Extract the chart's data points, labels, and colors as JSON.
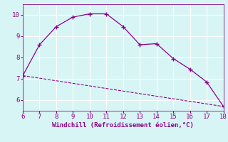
{
  "xlabel": "Windchill (Refroidissement éolien,°C)",
  "line1_x": [
    6,
    7,
    8,
    9,
    10,
    11,
    12,
    13,
    14,
    15,
    16,
    17,
    18
  ],
  "line1_y": [
    7.15,
    8.6,
    9.45,
    9.9,
    10.05,
    10.05,
    9.45,
    8.6,
    8.65,
    7.95,
    7.45,
    6.85,
    5.7
  ],
  "line2_x": [
    6,
    18
  ],
  "line2_y": [
    7.15,
    5.7
  ],
  "line_color": "#8b008b",
  "bg_color": "#d8f5f5",
  "xlim": [
    6,
    18
  ],
  "ylim": [
    5.5,
    10.5
  ],
  "xticks": [
    6,
    7,
    8,
    9,
    10,
    11,
    12,
    13,
    14,
    15,
    16,
    17,
    18
  ],
  "yticks": [
    6,
    7,
    8,
    9,
    10
  ],
  "grid_color": "#b8e8e8",
  "marker": "+"
}
